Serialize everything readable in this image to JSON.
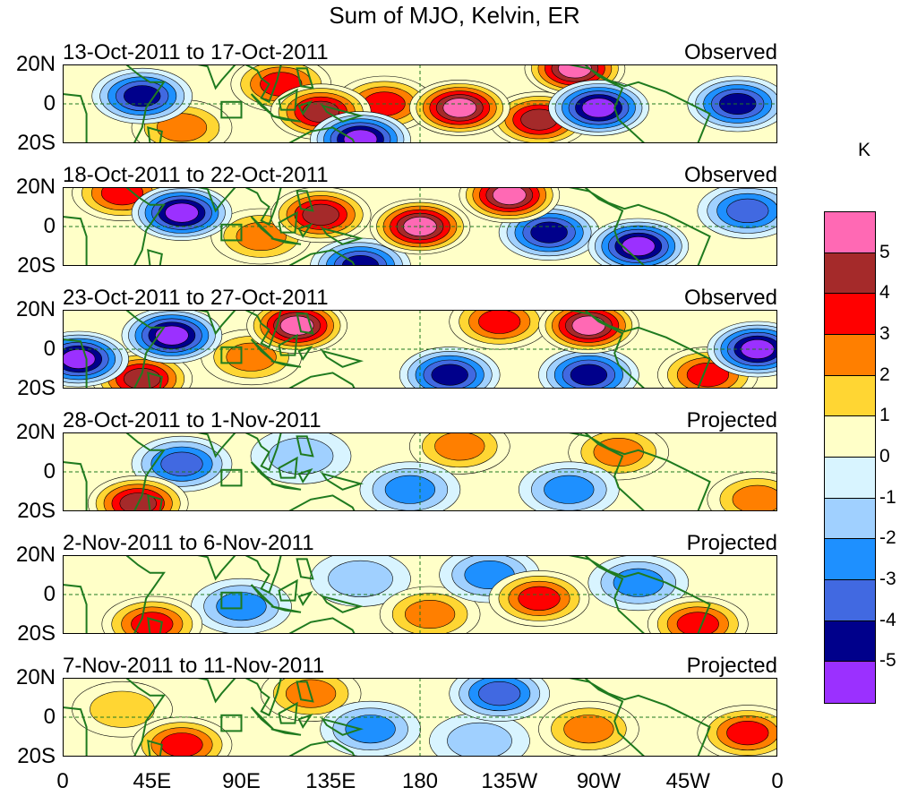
{
  "chart_data": {
    "type": "heatmap",
    "title": "Sum of MJO, Kelvin, ER",
    "unit": "K",
    "x_ticks": [
      "0",
      "45E",
      "90E",
      "135E",
      "180",
      "135W",
      "90W",
      "45W",
      "0"
    ],
    "y_ticks": [
      "20N",
      "0",
      "20S"
    ],
    "x_range_deg": [
      0,
      360
    ],
    "y_range_deg": [
      -20,
      20
    ],
    "colorbar": {
      "labels": [
        "5",
        "4",
        "3",
        "2",
        "1",
        "0",
        "-1",
        "-2",
        "-3",
        "-4",
        "-5"
      ],
      "colors": [
        "#ff69b4",
        "#a52a2a",
        "#ff0000",
        "#ff7f00",
        "#ffd633",
        "#ffffc8",
        "#d8f4ff",
        "#a0d0ff",
        "#1e90ff",
        "#4169e1",
        "#00008b",
        "#9b30ff"
      ]
    },
    "panels": [
      {
        "date": "13-Oct-2011 to 17-Oct-2011",
        "kind": "Observed",
        "anomalies": [
          {
            "lon": 110,
            "lat": 10,
            "value": 3
          },
          {
            "lon": 130,
            "lat": -4,
            "value": 4
          },
          {
            "lon": 162,
            "lat": 0,
            "value": 3
          },
          {
            "lon": 200,
            "lat": -2,
            "value": 5
          },
          {
            "lon": 240,
            "lat": -8,
            "value": 4
          },
          {
            "lon": 258,
            "lat": 18,
            "value": 5
          },
          {
            "lon": 40,
            "lat": 4,
            "value": -4
          },
          {
            "lon": 270,
            "lat": -2,
            "value": -5
          },
          {
            "lon": 340,
            "lat": 0,
            "value": -4
          },
          {
            "lon": 150,
            "lat": -18,
            "value": -5
          },
          {
            "lon": 60,
            "lat": -12,
            "value": 2
          }
        ]
      },
      {
        "date": "18-Oct-2011 to 22-Oct-2011",
        "kind": "Observed",
        "anomalies": [
          {
            "lon": 180,
            "lat": 0,
            "value": 5
          },
          {
            "lon": 225,
            "lat": 16,
            "value": 5
          },
          {
            "lon": 130,
            "lat": 6,
            "value": 4
          },
          {
            "lon": 30,
            "lat": 17,
            "value": 3
          },
          {
            "lon": 100,
            "lat": -5,
            "value": 2
          },
          {
            "lon": 60,
            "lat": 7,
            "value": -5
          },
          {
            "lon": 245,
            "lat": -3,
            "value": -4
          },
          {
            "lon": 290,
            "lat": -10,
            "value": -5
          },
          {
            "lon": 345,
            "lat": 8,
            "value": -3
          },
          {
            "lon": 150,
            "lat": -20,
            "value": -4
          }
        ]
      },
      {
        "date": "23-Oct-2011 to 27-Oct-2011",
        "kind": "Observed",
        "anomalies": [
          {
            "lon": 118,
            "lat": 12,
            "value": 5
          },
          {
            "lon": 265,
            "lat": 12,
            "value": 5
          },
          {
            "lon": 220,
            "lat": 14,
            "value": 3
          },
          {
            "lon": 40,
            "lat": -15,
            "value": 4
          },
          {
            "lon": 95,
            "lat": -4,
            "value": 2
          },
          {
            "lon": 55,
            "lat": 7,
            "value": -5
          },
          {
            "lon": 8,
            "lat": -5,
            "value": -5
          },
          {
            "lon": 195,
            "lat": -13,
            "value": -4
          },
          {
            "lon": 265,
            "lat": -13,
            "value": -4
          },
          {
            "lon": 350,
            "lat": 0,
            "value": -5
          },
          {
            "lon": 325,
            "lat": -13,
            "value": 3
          }
        ]
      },
      {
        "date": "28-Oct-2011 to 1-Nov-2011",
        "kind": "Projected",
        "anomalies": [
          {
            "lon": 38,
            "lat": -16,
            "value": 4
          },
          {
            "lon": 200,
            "lat": 13,
            "value": 2
          },
          {
            "lon": 280,
            "lat": 10,
            "value": 2
          },
          {
            "lon": 350,
            "lat": -14,
            "value": 2
          },
          {
            "lon": 60,
            "lat": 4,
            "value": -3
          },
          {
            "lon": 175,
            "lat": -9,
            "value": -2
          },
          {
            "lon": 255,
            "lat": -9,
            "value": -2
          },
          {
            "lon": 120,
            "lat": 8,
            "value": -1
          }
        ]
      },
      {
        "date": "2-Nov-2011 to 6-Nov-2011",
        "kind": "Projected",
        "anomalies": [
          {
            "lon": 45,
            "lat": -15,
            "value": 3
          },
          {
            "lon": 240,
            "lat": -2,
            "value": 3
          },
          {
            "lon": 320,
            "lat": -15,
            "value": 3
          },
          {
            "lon": 185,
            "lat": -10,
            "value": 2
          },
          {
            "lon": 215,
            "lat": 10,
            "value": -2
          },
          {
            "lon": 290,
            "lat": 6,
            "value": -2
          },
          {
            "lon": 90,
            "lat": -6,
            "value": -2
          },
          {
            "lon": 150,
            "lat": 8,
            "value": -1
          }
        ]
      },
      {
        "date": "7-Nov-2011 to 11-Nov-2011",
        "kind": "Projected",
        "anomalies": [
          {
            "lon": 60,
            "lat": -14,
            "value": 3
          },
          {
            "lon": 125,
            "lat": 12,
            "value": 2
          },
          {
            "lon": 265,
            "lat": -6,
            "value": 2
          },
          {
            "lon": 345,
            "lat": -8,
            "value": 3
          },
          {
            "lon": 220,
            "lat": 12,
            "value": -3
          },
          {
            "lon": 155,
            "lat": -6,
            "value": -2
          },
          {
            "lon": 210,
            "lat": -12,
            "value": -1
          },
          {
            "lon": 30,
            "lat": 4,
            "value": 1
          }
        ]
      }
    ]
  }
}
